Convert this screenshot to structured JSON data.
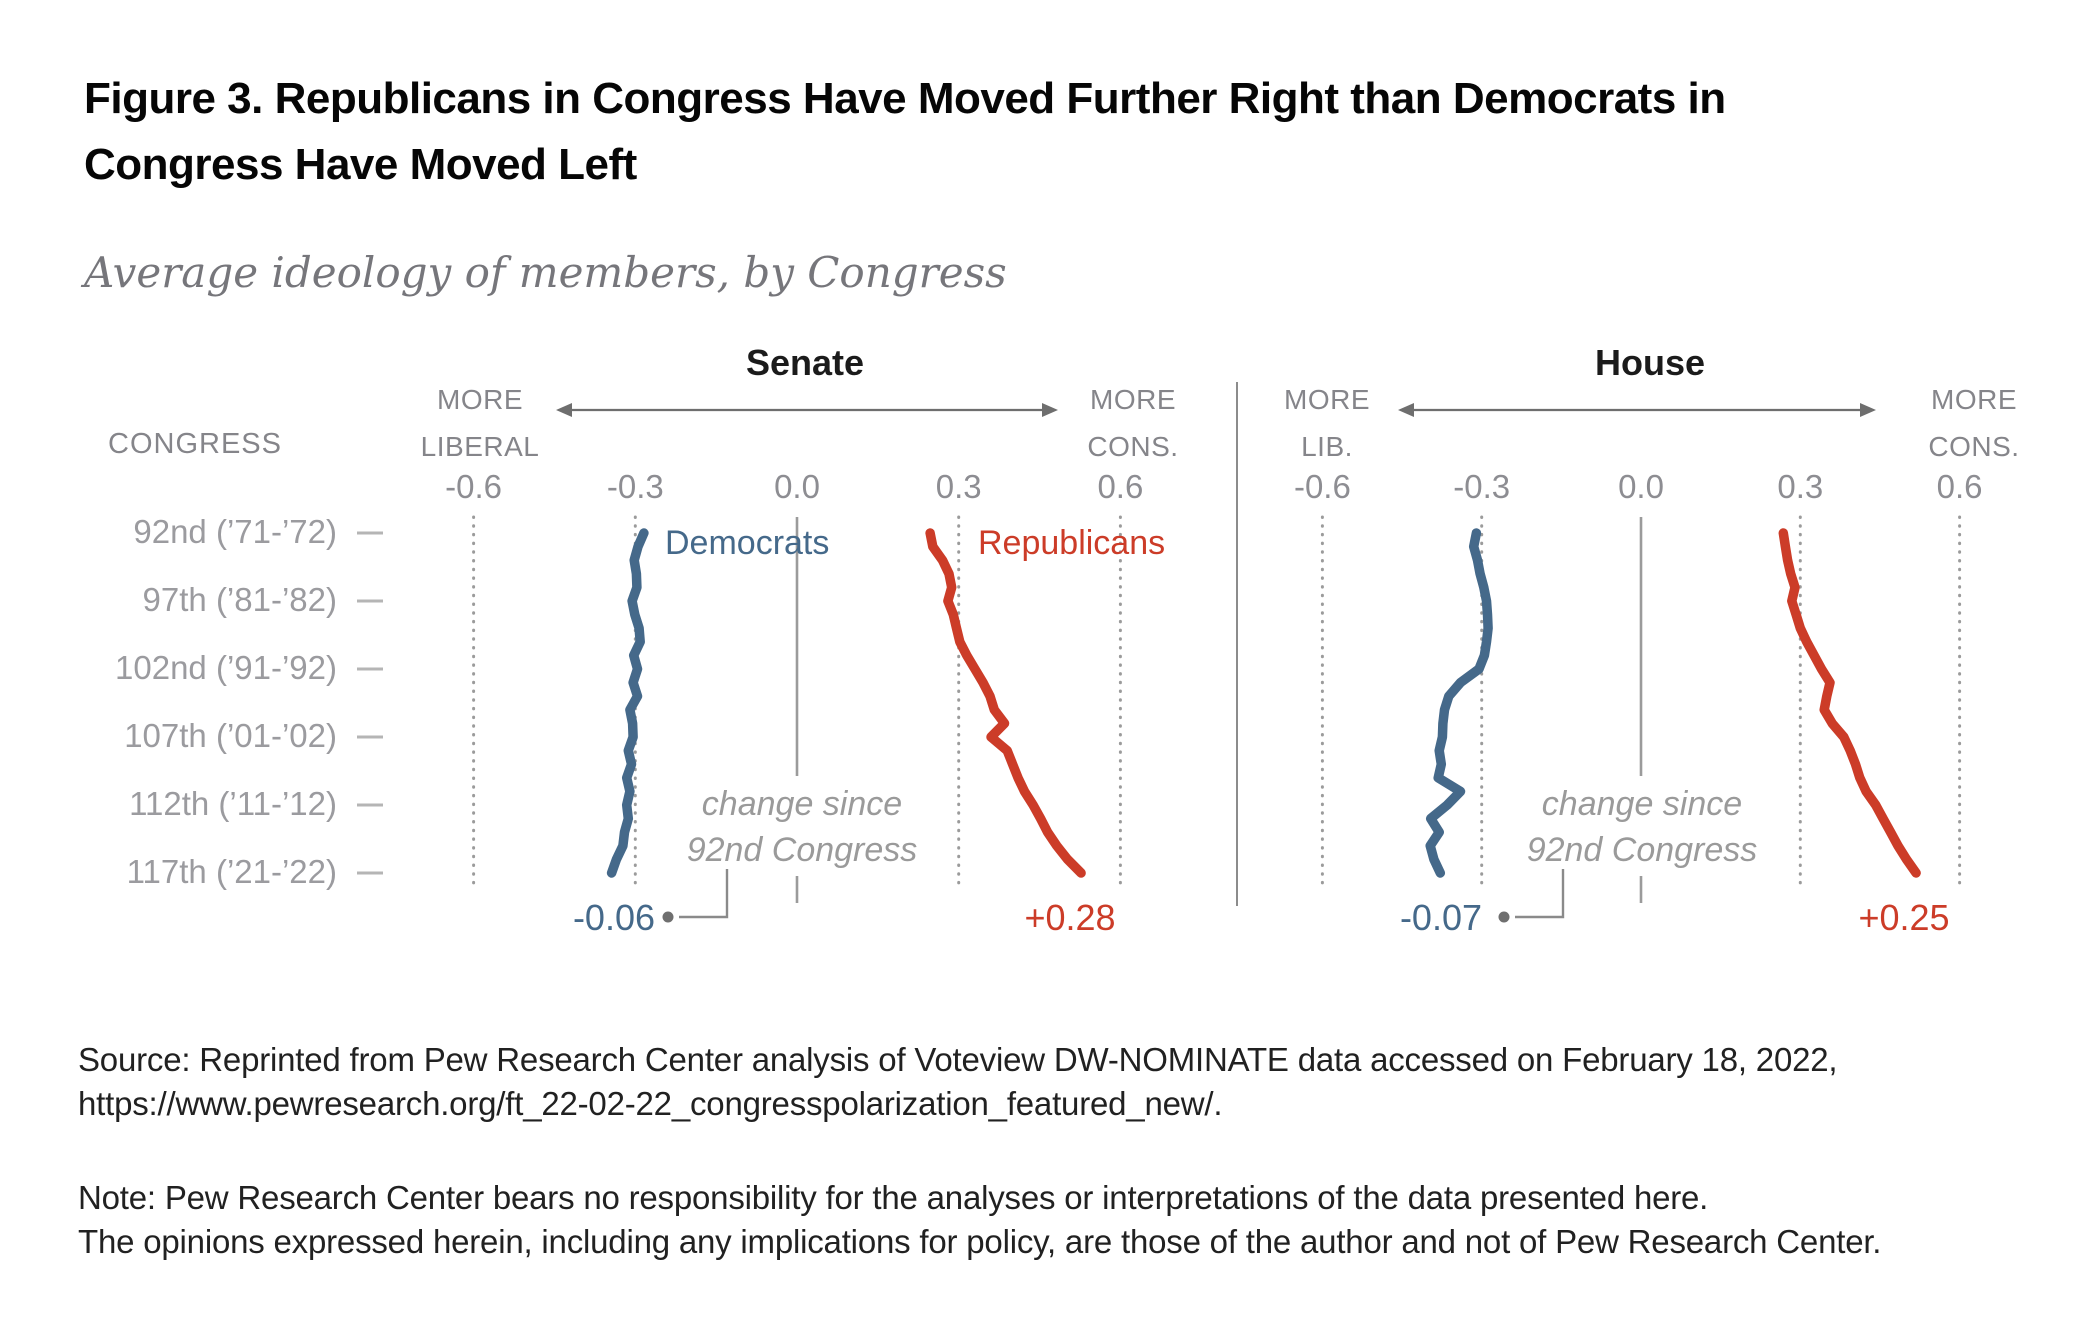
{
  "title": "Figure 3. Republicans in Congress Have Moved Further Right than Democrats in\nCongress Have Moved Left",
  "subtitle": "Average ideology of members, by Congress",
  "congress_axis": {
    "header": "CONGRESS",
    "labels": [
      "92nd (’71-’72)",
      "97th (’81-’82)",
      "102nd (’91-’92)",
      "107th (’01-’02)",
      "112th (’11-’12)",
      "117th (’21-’22)"
    ],
    "congress_range": [
      92,
      117
    ]
  },
  "colors": {
    "democrat_blue": "#45698a",
    "republican_red": "#cc3c28",
    "grid_gray": "#9b9b9b"
  },
  "chart_data": [
    {
      "type": "line",
      "panel": "Senate",
      "axis": {
        "left_label": "MORE\nLIBERAL",
        "right_label": "MORE\nCONS.",
        "ticks": [
          "-0.6",
          "-0.3",
          "0.0",
          "0.3",
          "0.6"
        ],
        "tick_values": [
          -0.6,
          -0.3,
          0,
          0.3,
          0.6
        ],
        "range": [
          -0.75,
          0.75
        ]
      },
      "annotation": "change since\n92nd Congress",
      "x_congresses": [
        92,
        93,
        94,
        95,
        96,
        97,
        98,
        99,
        100,
        101,
        102,
        103,
        104,
        105,
        106,
        107,
        108,
        109,
        110,
        111,
        112,
        113,
        114,
        115,
        116,
        117
      ],
      "series": [
        {
          "name": "Democrats",
          "party": "democrats",
          "show_name": true,
          "color": "#45698a",
          "change_label": "-0.06",
          "values": [
            -0.284,
            -0.295,
            -0.302,
            -0.298,
            -0.297,
            -0.306,
            -0.301,
            -0.293,
            -0.291,
            -0.303,
            -0.296,
            -0.304,
            -0.296,
            -0.31,
            -0.305,
            -0.304,
            -0.313,
            -0.307,
            -0.316,
            -0.31,
            -0.316,
            -0.313,
            -0.32,
            -0.323,
            -0.335,
            -0.344
          ]
        },
        {
          "name": "Republicans",
          "party": "republicans",
          "show_name": true,
          "color": "#cc3c28",
          "change_label": "+0.28",
          "values": [
            0.247,
            0.252,
            0.27,
            0.282,
            0.287,
            0.28,
            0.29,
            0.296,
            0.302,
            0.315,
            0.33,
            0.345,
            0.358,
            0.366,
            0.385,
            0.36,
            0.39,
            0.4,
            0.41,
            0.422,
            0.438,
            0.452,
            0.465,
            0.482,
            0.502,
            0.527
          ]
        }
      ]
    },
    {
      "type": "line",
      "panel": "House",
      "axis": {
        "left_label": "MORE\nLIB.",
        "right_label": "MORE\nCONS.",
        "ticks": [
          "-0.6",
          "-0.3",
          "0.0",
          "0.3",
          "0.6"
        ],
        "tick_values": [
          -0.6,
          -0.3,
          0,
          0.3,
          0.6
        ],
        "range": [
          -0.75,
          0.75
        ]
      },
      "annotation": "change since\n92nd Congress",
      "x_congresses": [
        92,
        93,
        94,
        95,
        96,
        97,
        98,
        99,
        100,
        101,
        102,
        103,
        104,
        105,
        106,
        107,
        108,
        109,
        110,
        111,
        112,
        113,
        114,
        115,
        116,
        117
      ],
      "series": [
        {
          "name": "Democrats",
          "party": "democrats",
          "show_name": false,
          "color": "#45698a",
          "change_label": "-0.07",
          "values": [
            -0.31,
            -0.315,
            -0.308,
            -0.303,
            -0.296,
            -0.291,
            -0.289,
            -0.288,
            -0.291,
            -0.295,
            -0.305,
            -0.34,
            -0.362,
            -0.37,
            -0.373,
            -0.374,
            -0.38,
            -0.376,
            -0.382,
            -0.34,
            -0.365,
            -0.396,
            -0.38,
            -0.397,
            -0.39,
            -0.378
          ]
        },
        {
          "name": "Republicans",
          "party": "republicans",
          "show_name": false,
          "color": "#cc3c28",
          "change_label": "+0.25",
          "values": [
            0.268,
            0.272,
            0.276,
            0.282,
            0.29,
            0.284,
            0.292,
            0.3,
            0.312,
            0.326,
            0.34,
            0.356,
            0.35,
            0.345,
            0.36,
            0.382,
            0.394,
            0.404,
            0.412,
            0.424,
            0.442,
            0.456,
            0.47,
            0.484,
            0.5,
            0.518
          ]
        }
      ]
    }
  ],
  "source": "Source: Reprinted from Pew Research Center analysis of Voteview DW-NOMINATE data accessed on February 18, 2022,\nhttps://www.pewresearch.org/ft_22-02-22_congresspolarization_featured_new/.",
  "note": "Note: Pew Research Center bears no responsibility for the analyses or interpretations of the data presented here.\nThe opinions expressed herein, including any implications for policy, are those of the author and not of Pew Research Center."
}
